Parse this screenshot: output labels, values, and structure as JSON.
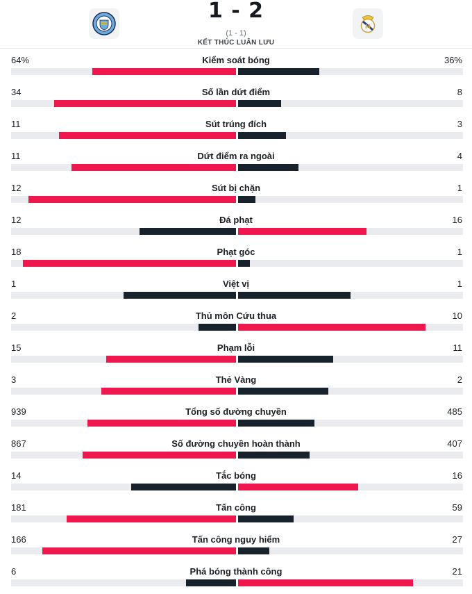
{
  "match": {
    "score": "1 - 2",
    "aggregate": "(1 - 1)",
    "status": "KẾT THÚC LUÂN LƯU",
    "home_logo_icon": "manchester-city-crest-icon",
    "away_logo_icon": "real-madrid-crest-icon"
  },
  "colors": {
    "leading": "#f0174f",
    "trailing": "#17222c",
    "track": "#e9ebee"
  },
  "stats": [
    {
      "label": "Kiểm soát bóng",
      "home": "64%",
      "away": "36%",
      "home_num": 64,
      "away_num": 36
    },
    {
      "label": "Số lần dứt điểm",
      "home": "34",
      "away": "8",
      "home_num": 34,
      "away_num": 8
    },
    {
      "label": "Sút trúng đích",
      "home": "11",
      "away": "3",
      "home_num": 11,
      "away_num": 3
    },
    {
      "label": "Dứt điểm ra ngoài",
      "home": "11",
      "away": "4",
      "home_num": 11,
      "away_num": 4
    },
    {
      "label": "Sút bị chặn",
      "home": "12",
      "away": "1",
      "home_num": 12,
      "away_num": 1
    },
    {
      "label": "Đá phạt",
      "home": "12",
      "away": "16",
      "home_num": 12,
      "away_num": 16
    },
    {
      "label": "Phạt góc",
      "home": "18",
      "away": "1",
      "home_num": 18,
      "away_num": 1
    },
    {
      "label": "Việt vị",
      "home": "1",
      "away": "1",
      "home_num": 1,
      "away_num": 1
    },
    {
      "label": "Thủ môn Cứu thua",
      "home": "2",
      "away": "10",
      "home_num": 2,
      "away_num": 10
    },
    {
      "label": "Phạm lỗi",
      "home": "15",
      "away": "11",
      "home_num": 15,
      "away_num": 11
    },
    {
      "label": "Thẻ Vàng",
      "home": "3",
      "away": "2",
      "home_num": 3,
      "away_num": 2
    },
    {
      "label": "Tổng số đường chuyền",
      "home": "939",
      "away": "485",
      "home_num": 939,
      "away_num": 485
    },
    {
      "label": "Số đường chuyền hoàn thành",
      "home": "867",
      "away": "407",
      "home_num": 867,
      "away_num": 407
    },
    {
      "label": "Tắc bóng",
      "home": "14",
      "away": "16",
      "home_num": 14,
      "away_num": 16
    },
    {
      "label": "Tấn công",
      "home": "181",
      "away": "59",
      "home_num": 181,
      "away_num": 59
    },
    {
      "label": "Tấn công nguy hiểm",
      "home": "166",
      "away": "27",
      "home_num": 166,
      "away_num": 27
    },
    {
      "label": "Phá bóng thành công",
      "home": "6",
      "away": "21",
      "home_num": 6,
      "away_num": 21
    }
  ]
}
